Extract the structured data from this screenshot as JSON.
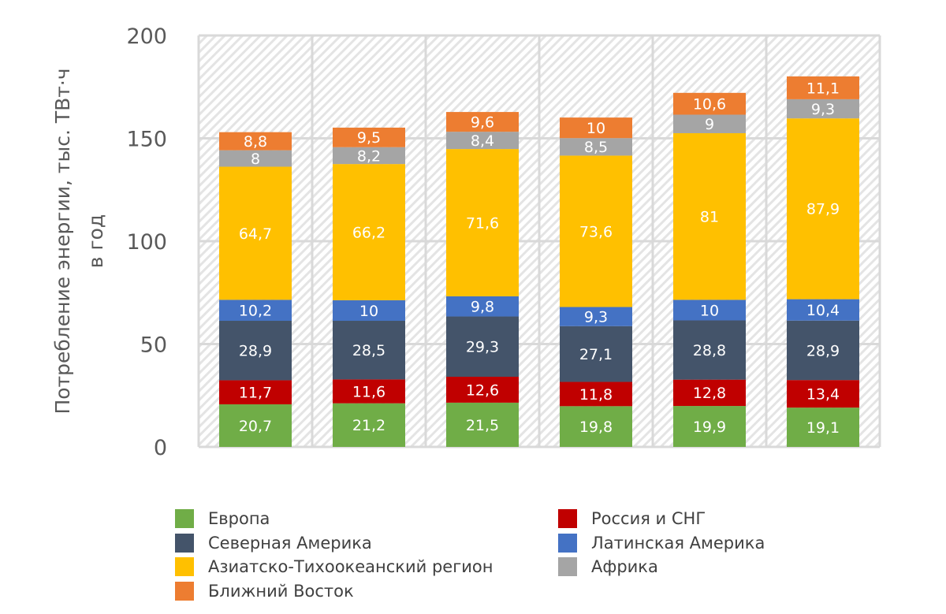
{
  "chart_data": {
    "type": "stacked-bar",
    "title": "",
    "xlabel": "",
    "ylabel": [
      "Потребление энергии, тыс. ТВт·ч",
      "в год"
    ],
    "ylim": [
      0,
      200
    ],
    "yticks": [
      "0",
      "50",
      "100",
      "150",
      "200"
    ],
    "grid": true,
    "legend_position": "bottom",
    "categories": [
      "",
      "",
      "",
      "",
      "",
      ""
    ],
    "series": [
      {
        "name": "Европа",
        "color": "#70AD47",
        "values": [
          20.7,
          21.2,
          21.5,
          19.8,
          19.9,
          19.1
        ],
        "labels": [
          "20,7",
          "21,2",
          "21,5",
          "19,8",
          "19,9",
          "19,1"
        ]
      },
      {
        "name": "Россия и СНГ",
        "color": "#C00000",
        "values": [
          11.7,
          11.6,
          12.6,
          11.8,
          12.8,
          13.4
        ],
        "labels": [
          "11,7",
          "11,6",
          "12,6",
          "11,8",
          "12,8",
          "13,4"
        ]
      },
      {
        "name": "Северная Америка",
        "color": "#44546A",
        "values": [
          28.9,
          28.5,
          29.3,
          27.1,
          28.8,
          28.9
        ],
        "labels": [
          "28,9",
          "28,5",
          "29,3",
          "27,1",
          "28,8",
          "28,9"
        ]
      },
      {
        "name": "Латинская Америка",
        "color": "#4472C4",
        "values": [
          10.2,
          10,
          9.8,
          9.3,
          10,
          10.4
        ],
        "labels": [
          "10,2",
          "10",
          "9,8",
          "9,3",
          "10",
          "10,4"
        ]
      },
      {
        "name": "Азиатско-Тихоокеанский регион",
        "color": "#FFC000",
        "values": [
          64.7,
          66.2,
          71.6,
          73.6,
          81,
          87.9
        ],
        "labels": [
          "64,7",
          "66,2",
          "71,6",
          "73,6",
          "81",
          "87,9"
        ]
      },
      {
        "name": "Африка",
        "color": "#A5A5A5",
        "values": [
          8,
          8.2,
          8.4,
          8.5,
          9,
          9.3
        ],
        "labels": [
          "8",
          "8,2",
          "8,4",
          "8,5",
          "9",
          "9,3"
        ]
      },
      {
        "name": "Ближний Восток",
        "color": "#ED7D31",
        "values": [
          8.8,
          9.5,
          9.6,
          10,
          10.6,
          11.1
        ],
        "labels": [
          "8,8",
          "9,5",
          "9,6",
          "10",
          "10,6",
          "11,1"
        ]
      }
    ]
  }
}
